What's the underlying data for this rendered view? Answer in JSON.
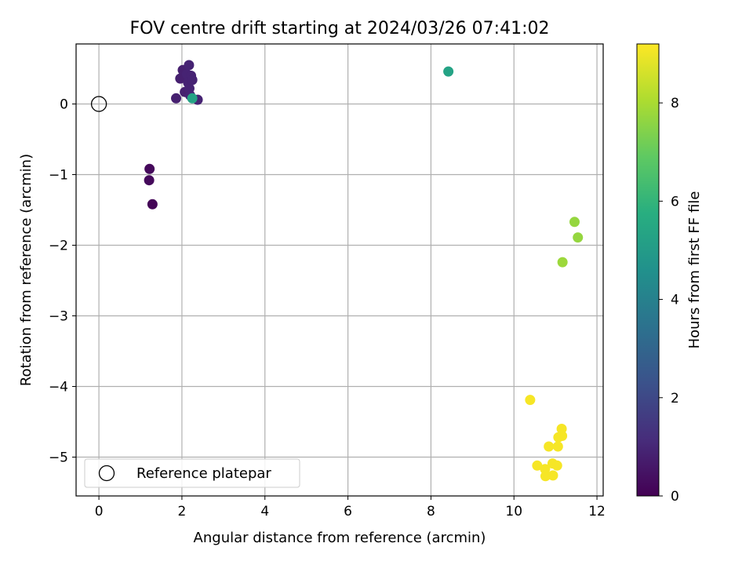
{
  "chart_data": {
    "type": "scatter",
    "title": "FOV centre drift starting at 2024/03/26 07:41:02",
    "xlabel": "Angular distance from reference (arcmin)",
    "ylabel": "Rotation from reference (arcmin)",
    "xlim": [
      -0.55,
      12.15
    ],
    "ylim": [
      -5.55,
      0.85
    ],
    "xticks": [
      0,
      2,
      4,
      6,
      8,
      10,
      12
    ],
    "yticks": [
      0,
      -1,
      -2,
      -3,
      -4,
      -5
    ],
    "grid": true,
    "legend": {
      "placement": "lower-left",
      "label": "Reference platepar"
    },
    "reference_point": {
      "x": 0,
      "y": 0,
      "marker": "open-circle"
    },
    "colorbar": {
      "label": "Hours from first FF file",
      "min": 0,
      "max": 9.2,
      "ticks": [
        0,
        2,
        4,
        6,
        8
      ],
      "colormap": "viridis"
    },
    "points": [
      {
        "x": 1.22,
        "y": -0.92,
        "hours": 0.2
      },
      {
        "x": 1.21,
        "y": -1.08,
        "hours": 0.2
      },
      {
        "x": 1.29,
        "y": -1.42,
        "hours": 0.1
      },
      {
        "x": 1.86,
        "y": 0.08,
        "hours": 0.8
      },
      {
        "x": 1.96,
        "y": 0.36,
        "hours": 0.8
      },
      {
        "x": 2.02,
        "y": 0.48,
        "hours": 0.8
      },
      {
        "x": 2.07,
        "y": 0.17,
        "hours": 0.8
      },
      {
        "x": 2.12,
        "y": 0.42,
        "hours": 0.9
      },
      {
        "x": 2.17,
        "y": 0.55,
        "hours": 0.9
      },
      {
        "x": 2.15,
        "y": 0.3,
        "hours": 0.9
      },
      {
        "x": 2.18,
        "y": 0.22,
        "hours": 0.9
      },
      {
        "x": 2.2,
        "y": 0.12,
        "hours": 0.9
      },
      {
        "x": 2.22,
        "y": 0.4,
        "hours": 0.9
      },
      {
        "x": 2.25,
        "y": 0.34,
        "hours": 0.9
      },
      {
        "x": 2.38,
        "y": 0.06,
        "hours": 0.9
      },
      {
        "x": 2.25,
        "y": 0.08,
        "hours": 5.3
      },
      {
        "x": 8.42,
        "y": 0.46,
        "hours": 5.3
      },
      {
        "x": 11.46,
        "y": -1.67,
        "hours": 7.7
      },
      {
        "x": 11.54,
        "y": -1.89,
        "hours": 7.7
      },
      {
        "x": 11.17,
        "y": -2.24,
        "hours": 7.8
      },
      {
        "x": 10.39,
        "y": -4.19,
        "hours": 9.1
      },
      {
        "x": 11.15,
        "y": -4.6,
        "hours": 9.1
      },
      {
        "x": 11.16,
        "y": -4.7,
        "hours": 9.1
      },
      {
        "x": 11.07,
        "y": -4.72,
        "hours": 9.1
      },
      {
        "x": 10.84,
        "y": -4.85,
        "hours": 9.1
      },
      {
        "x": 11.06,
        "y": -4.85,
        "hours": 9.1
      },
      {
        "x": 10.56,
        "y": -5.12,
        "hours": 9.1
      },
      {
        "x": 10.93,
        "y": -5.09,
        "hours": 9.1
      },
      {
        "x": 11.04,
        "y": -5.12,
        "hours": 9.1
      },
      {
        "x": 10.75,
        "y": -5.17,
        "hours": 9.1
      },
      {
        "x": 10.76,
        "y": -5.27,
        "hours": 9.1
      },
      {
        "x": 10.94,
        "y": -5.26,
        "hours": 9.1
      }
    ]
  }
}
